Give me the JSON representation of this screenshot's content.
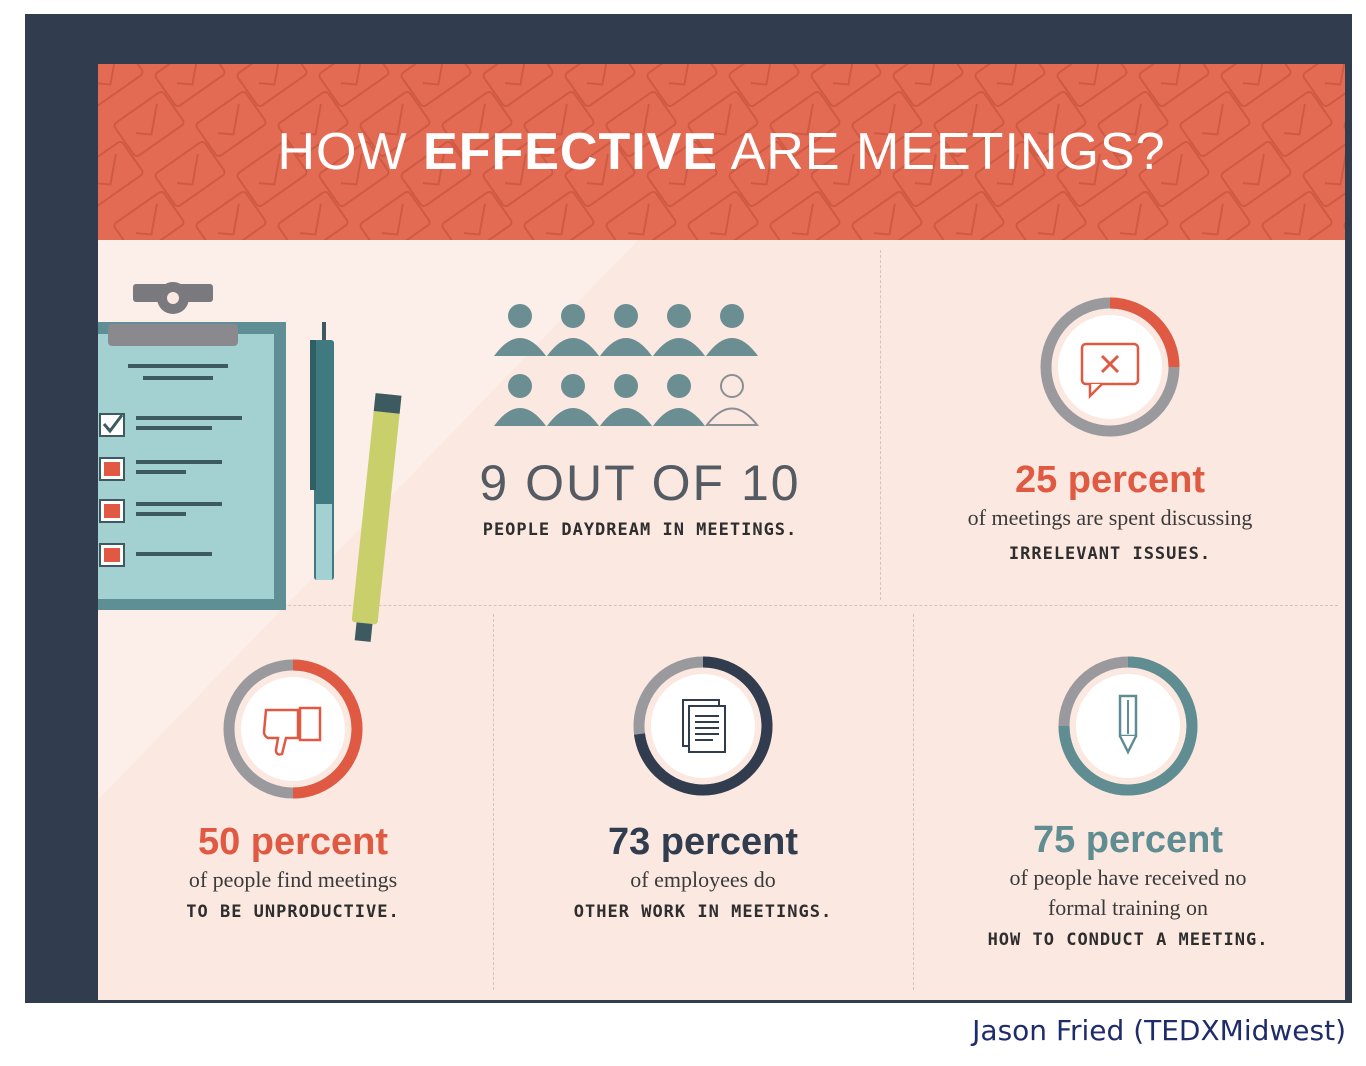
{
  "header": {
    "title_pre": "HOW ",
    "title_bold": "EFFECTIVE",
    "title_post": " ARE MEETINGS?"
  },
  "stats": {
    "daydream": {
      "headline": "9 OUT OF 10",
      "caption": "PEOPLE DAYDREAM IN MEETINGS.",
      "filled_people": 9,
      "total_people": 10
    },
    "irrelevant": {
      "headline": "25 percent",
      "line1": "of meetings are spent discussing",
      "caps": "IRRELEVANT ISSUES.",
      "value_percent": 25,
      "icon": "speech-bubble-x-icon"
    },
    "unproductive": {
      "headline": "50 percent",
      "line1": "of people find meetings",
      "caps": "TO BE UNPRODUCTIVE.",
      "value_percent": 50,
      "icon": "thumbs-down-icon"
    },
    "other_work": {
      "headline": "73 percent",
      "line1": "of employees do",
      "caps": "OTHER WORK IN MEETINGS.",
      "value_percent": 73,
      "icon": "documents-icon"
    },
    "no_training": {
      "headline": "75 percent",
      "line1": "of people have received no",
      "line2": "formal training on",
      "caps": "HOW TO CONDUCT A MEETING.",
      "value_percent": 75,
      "icon": "pencil-icon"
    }
  },
  "colors": {
    "banner": "#e36b53",
    "accent_red": "#e05a43",
    "dark_navy": "#313d4f",
    "teal": "#5f8d92",
    "people": "#6b8e93",
    "ring_gray": "#9a9a9e"
  },
  "credit": "Jason Fried (TEDXMidwest)"
}
